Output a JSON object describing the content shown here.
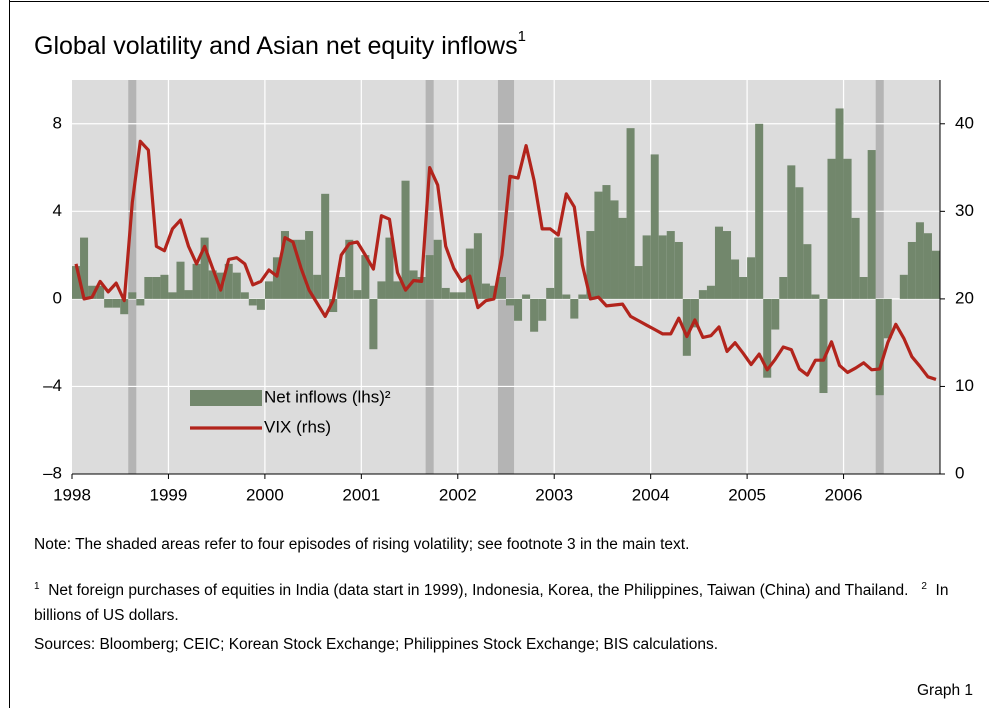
{
  "chart_data": {
    "type": "bar-line",
    "title": "Global volatility and Asian net equity inflows",
    "title_marker": "1",
    "categories": [
      "1998",
      null,
      null,
      null,
      null,
      null,
      null,
      null,
      null,
      null,
      null,
      null,
      "1999",
      null,
      null,
      null,
      null,
      null,
      null,
      null,
      null,
      null,
      null,
      null,
      "2000",
      null,
      null,
      null,
      null,
      null,
      null,
      null,
      null,
      null,
      null,
      null,
      "2001",
      null,
      null,
      null,
      null,
      null,
      null,
      null,
      null,
      null,
      null,
      null,
      "2002",
      null,
      null,
      null,
      null,
      null,
      null,
      null,
      null,
      null,
      null,
      null,
      "2003",
      null,
      null,
      null,
      null,
      null,
      null,
      null,
      null,
      null,
      null,
      null,
      "2004",
      null,
      null,
      null,
      null,
      null,
      null,
      null,
      null,
      null,
      null,
      null,
      "2005",
      null,
      null,
      null,
      null,
      null,
      null,
      null,
      null,
      null,
      null,
      null,
      "2006",
      null,
      null,
      null,
      null,
      null,
      null,
      null,
      null,
      null,
      null,
      null
    ],
    "series": [
      {
        "name": "Net inflows (lhs)²",
        "color": "#72876c",
        "kind": "bar",
        "values": [
          1.5,
          2.8,
          0.6,
          0.6,
          -0.4,
          -0.4,
          -0.7,
          0.3,
          -0.3,
          1.0,
          1.0,
          1.1,
          0.3,
          1.7,
          0.4,
          1.6,
          2.8,
          1.3,
          1.2,
          1.6,
          1.2,
          0.3,
          -0.3,
          -0.5,
          0.8,
          1.9,
          3.1,
          2.7,
          2.7,
          3.1,
          1.1,
          4.8,
          -0.6,
          1.0,
          2.7,
          0.4,
          2.0,
          -2.3,
          0.8,
          2.8,
          0.8,
          5.4,
          1.3,
          1.0,
          2.0,
          2.7,
          0.5,
          0.3,
          0.3,
          2.3,
          3.0,
          0.7,
          0.6,
          1.0,
          -0.3,
          -1.0,
          0.2,
          -1.5,
          -1.0,
          0.5,
          2.8,
          0.2,
          -0.9,
          0.2,
          3.1,
          4.9,
          5.2,
          4.5,
          3.7,
          7.8,
          1.5,
          2.9,
          6.6,
          2.9,
          3.1,
          2.6,
          -2.6,
          -1.3,
          0.4,
          0.6,
          3.3,
          3.1,
          1.8,
          1.0,
          1.9,
          8.0,
          -3.6,
          -1.4,
          1.0,
          6.1,
          5.1,
          2.5,
          0.2,
          -4.3,
          6.4,
          8.7,
          6.4,
          3.7,
          1.0,
          6.8,
          -4.4,
          -1.8,
          0.0,
          1.1,
          2.6,
          3.5,
          3.0,
          2.2
        ]
      },
      {
        "name": "VIX (rhs)",
        "color": "#b2241c",
        "kind": "line",
        "axis": "y2",
        "values": [
          24,
          20,
          20.2,
          22,
          20.8,
          21.8,
          19.8,
          31,
          38,
          37,
          26,
          25.5,
          28,
          29,
          26,
          24,
          26,
          23.5,
          21,
          24.5,
          24.7,
          24,
          21.6,
          22,
          23.3,
          22.6,
          27,
          26.5,
          23.5,
          21,
          19.5,
          18,
          19.8,
          25,
          26.3,
          26.5,
          25,
          23.4,
          29.5,
          29.1,
          23,
          21,
          22.1,
          22,
          35,
          33,
          26,
          23.5,
          22,
          22.6,
          19,
          19.8,
          20,
          25,
          34,
          33.8,
          37.5,
          33.5,
          28,
          28,
          27.3,
          32,
          30.5,
          23.9,
          20,
          20.2,
          19.2,
          19.3,
          19.4,
          18,
          17.5,
          17,
          16.5,
          16,
          16,
          17.8,
          15.7,
          17.6,
          15.6,
          15.8,
          16.8,
          14,
          15,
          13.8,
          12.5,
          13.7,
          11.9,
          13.1,
          14.5,
          14.2,
          12,
          11.3,
          13,
          13,
          15.1,
          12.4,
          11.6,
          12.1,
          12.7,
          11.9,
          12,
          15,
          17.1,
          15.5,
          13.4,
          12.3,
          11.1,
          10.8
        ]
      }
    ],
    "shaded_periods": [
      [
        7,
        8
      ],
      [
        44,
        45
      ],
      [
        53,
        55
      ],
      [
        100,
        101
      ]
    ],
    "ylim": [
      -8,
      10
    ],
    "yticks": [
      {
        "value": -8,
        "label": "–8"
      },
      {
        "value": -4,
        "label": "–4"
      },
      0,
      4,
      8
    ],
    "y2lim": [
      0,
      45
    ],
    "y2ticks": [
      0,
      10,
      20,
      30,
      40
    ],
    "grid": true
  },
  "notes": {
    "note": "Note: The shaded areas refer to four episodes of rising volatility; see footnote 3 in the main text.",
    "footnotes": [
      {
        "marker": "1",
        "text": "Net foreign purchases of equities in India (data start in 1999), Indonesia, Korea, the Philippines, Taiwan (China) and Thailand."
      },
      {
        "marker": "2",
        "text": "In billions of US dollars."
      }
    ],
    "sources": "Sources: Bloomberg; CEIC; Korean Stock Exchange; Philippines Stock Exchange; BIS calculations.",
    "graph_label": "Graph 1"
  }
}
